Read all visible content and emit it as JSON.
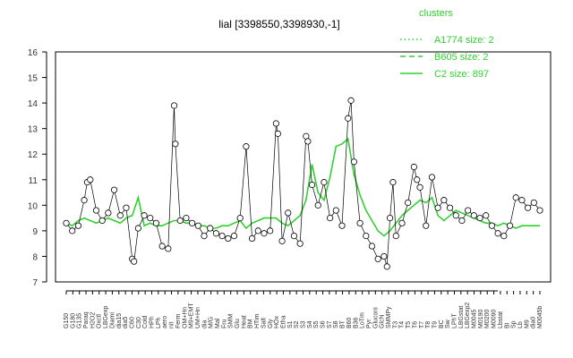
{
  "chart_data": {
    "type": "line",
    "title": "lial [3398550,3398930,-1]",
    "xlabel": "",
    "ylabel": "",
    "ylim": [
      7,
      16
    ],
    "yticks": [
      7,
      8,
      9,
      10,
      11,
      12,
      13,
      14,
      15,
      16
    ],
    "grid": false,
    "legend": {
      "title": "clusters",
      "position": "top-right",
      "entries": [
        {
          "label": "A1774 size: 2",
          "style": "dotted"
        },
        {
          "label": "B605 size: 2",
          "style": "dashed"
        },
        {
          "label": "C2 size: 897",
          "style": "solid"
        }
      ]
    },
    "series_color": "#2fd12f",
    "x_tick_labels": [
      "G150",
      "G180",
      "G135",
      "Paraq",
      "H2O2",
      "Oxctl",
      "LBGexp",
      "Diami",
      "dia15",
      "dia5",
      "C60",
      "C30",
      "Cold",
      "HPh",
      "LPh",
      "aero",
      "nit",
      "Ferm",
      "OM+Hn",
      "M9+EMT",
      "UM+Hn",
      "dia",
      "M/G",
      "Mal",
      "Fru",
      "SMM",
      "Glu",
      "Heat",
      "BM",
      "HTim",
      "Salt",
      "Gly",
      "HOx",
      "Etha",
      "S1",
      "S2",
      "S3",
      "S4",
      "S5",
      "S6",
      "S7",
      "S8",
      "BT",
      "B60",
      "B36",
      "LoTm",
      "Pyr",
      "Gluconi",
      "GlcN",
      "SMMPy",
      "T3",
      "T4",
      "T5",
      "T6",
      "T7",
      "T8",
      "T9",
      "BC",
      "Sw",
      "LPhT",
      "LBGstat",
      "LBGexp2",
      "M0045",
      "M0190",
      "M0200",
      "M0090",
      "Lbstat",
      "BI",
      "Sp",
      "Lb",
      "M9",
      "dia0",
      "M0045b"
    ],
    "series": [
      {
        "name": "C2 size: 897",
        "x": [
          1,
          2,
          3,
          4,
          5,
          6,
          7,
          8,
          9,
          10,
          11,
          12,
          13,
          14,
          15,
          16,
          17,
          18,
          19,
          20,
          21,
          22,
          23,
          24,
          25,
          26,
          27,
          28,
          29,
          30,
          31,
          32,
          33,
          34,
          35,
          36,
          37,
          38,
          39,
          40,
          41,
          42,
          43,
          44,
          45,
          46,
          47,
          48,
          49,
          50,
          51,
          52,
          53,
          54,
          55,
          56,
          57,
          58,
          59,
          60,
          61,
          62,
          63,
          64,
          65,
          66,
          67,
          68,
          69,
          70,
          71,
          72,
          73,
          74,
          75,
          76,
          77,
          78,
          79,
          80
        ],
        "values": [
          9.3,
          9.2,
          9.4,
          9.5,
          9.4,
          9.3,
          9.4,
          9.5,
          9.4,
          9.3,
          9.5,
          9.6,
          10.3,
          9.2,
          9.3,
          9.2,
          9.2,
          9.3,
          9.4,
          9.4,
          9.3,
          9.3,
          9.2,
          9.2,
          9.1,
          9.1,
          9.2,
          9.2,
          9.3,
          9.4,
          9.1,
          9.3,
          9.4,
          9.5,
          9.5,
          9.5,
          9.3,
          9.2,
          9.4,
          9.6,
          10.2,
          11.6,
          10.5,
          10.2,
          11.1,
          12.3,
          12.4,
          12.6,
          11.2,
          10.4,
          9.8,
          9.4,
          9.0,
          8.8,
          9.0,
          9.3,
          9.6,
          9.8,
          10.0,
          10.2,
          10.1,
          10.3,
          9.6,
          9.4,
          9.6,
          9.8,
          9.7,
          9.6,
          9.5,
          9.4,
          9.3,
          9.3,
          9.2,
          9.3,
          9.2,
          9.1,
          9.2,
          9.2,
          9.2,
          9.2
        ]
      }
    ],
    "points": [
      {
        "x": 1,
        "y": 9.3
      },
      {
        "x": 2,
        "y": 9.0
      },
      {
        "x": 3,
        "y": 9.2
      },
      {
        "x": 4,
        "y": 10.2
      },
      {
        "x": 4.5,
        "y": 10.9
      },
      {
        "x": 5,
        "y": 11.0
      },
      {
        "x": 6,
        "y": 9.8
      },
      {
        "x": 7,
        "y": 9.4
      },
      {
        "x": 8,
        "y": 9.7
      },
      {
        "x": 9,
        "y": 10.6
      },
      {
        "x": 10,
        "y": 9.6
      },
      {
        "x": 11,
        "y": 9.9
      },
      {
        "x": 12,
        "y": 7.9
      },
      {
        "x": 12.3,
        "y": 7.8
      },
      {
        "x": 13,
        "y": 9.1
      },
      {
        "x": 14,
        "y": 9.6
      },
      {
        "x": 15,
        "y": 9.5
      },
      {
        "x": 16,
        "y": 9.3
      },
      {
        "x": 17,
        "y": 8.4
      },
      {
        "x": 18,
        "y": 8.3
      },
      {
        "x": 19,
        "y": 13.9
      },
      {
        "x": 19.2,
        "y": 12.4
      },
      {
        "x": 20,
        "y": 9.4
      },
      {
        "x": 21,
        "y": 9.5
      },
      {
        "x": 22,
        "y": 9.3
      },
      {
        "x": 23,
        "y": 9.2
      },
      {
        "x": 24,
        "y": 8.8
      },
      {
        "x": 25,
        "y": 9.1
      },
      {
        "x": 26,
        "y": 8.9
      },
      {
        "x": 27,
        "y": 8.8
      },
      {
        "x": 28,
        "y": 8.7
      },
      {
        "x": 29,
        "y": 8.8
      },
      {
        "x": 30,
        "y": 9.5
      },
      {
        "x": 31,
        "y": 12.3
      },
      {
        "x": 32,
        "y": 8.7
      },
      {
        "x": 33,
        "y": 9.0
      },
      {
        "x": 34,
        "y": 8.9
      },
      {
        "x": 35,
        "y": 9.0
      },
      {
        "x": 36,
        "y": 13.2
      },
      {
        "x": 36.3,
        "y": 12.8
      },
      {
        "x": 37,
        "y": 8.6
      },
      {
        "x": 38,
        "y": 9.7
      },
      {
        "x": 39,
        "y": 8.8
      },
      {
        "x": 40,
        "y": 8.5
      },
      {
        "x": 41,
        "y": 12.7
      },
      {
        "x": 41.3,
        "y": 12.5
      },
      {
        "x": 42,
        "y": 10.8
      },
      {
        "x": 43,
        "y": 10.0
      },
      {
        "x": 44,
        "y": 10.9
      },
      {
        "x": 45,
        "y": 9.5
      },
      {
        "x": 46,
        "y": 9.8
      },
      {
        "x": 47,
        "y": 9.2
      },
      {
        "x": 48,
        "y": 13.4
      },
      {
        "x": 48.5,
        "y": 14.1
      },
      {
        "x": 49,
        "y": 11.7
      },
      {
        "x": 50,
        "y": 9.3
      },
      {
        "x": 51,
        "y": 8.8
      },
      {
        "x": 52,
        "y": 8.4
      },
      {
        "x": 53,
        "y": 7.9
      },
      {
        "x": 54,
        "y": 8.0
      },
      {
        "x": 54.5,
        "y": 7.6
      },
      {
        "x": 55,
        "y": 9.5
      },
      {
        "x": 55.5,
        "y": 10.9
      },
      {
        "x": 56,
        "y": 8.8
      },
      {
        "x": 57,
        "y": 9.3
      },
      {
        "x": 58,
        "y": 10.1
      },
      {
        "x": 59,
        "y": 11.5
      },
      {
        "x": 59.5,
        "y": 11.0
      },
      {
        "x": 60,
        "y": 10.7
      },
      {
        "x": 61,
        "y": 9.2
      },
      {
        "x": 62,
        "y": 11.1
      },
      {
        "x": 63,
        "y": 9.9
      },
      {
        "x": 64,
        "y": 10.2
      },
      {
        "x": 65,
        "y": 9.9
      },
      {
        "x": 66,
        "y": 9.6
      },
      {
        "x": 67,
        "y": 9.4
      },
      {
        "x": 68,
        "y": 9.8
      },
      {
        "x": 69,
        "y": 9.6
      },
      {
        "x": 70,
        "y": 9.5
      },
      {
        "x": 71,
        "y": 9.6
      },
      {
        "x": 72,
        "y": 9.2
      },
      {
        "x": 73,
        "y": 8.9
      },
      {
        "x": 74,
        "y": 8.8
      },
      {
        "x": 75,
        "y": 9.2
      },
      {
        "x": 76,
        "y": 10.3
      },
      {
        "x": 77,
        "y": 10.2
      },
      {
        "x": 78,
        "y": 9.9
      },
      {
        "x": 79,
        "y": 10.1
      },
      {
        "x": 80,
        "y": 9.8
      }
    ]
  }
}
